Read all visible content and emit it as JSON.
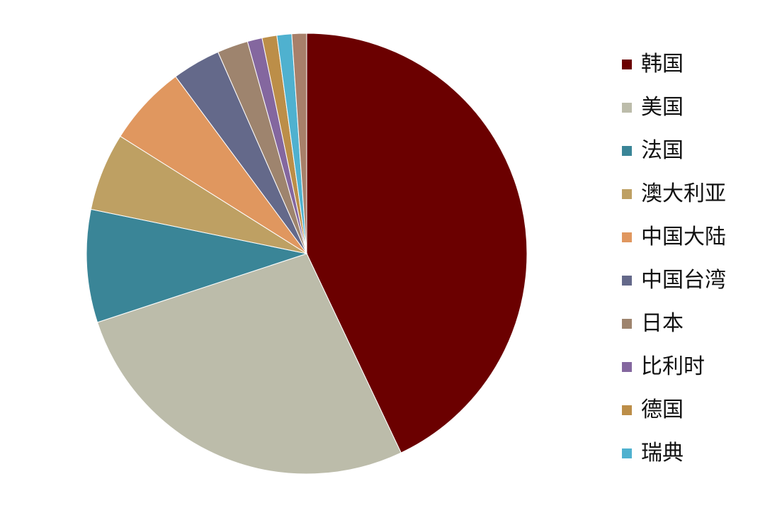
{
  "chart_data": {
    "type": "pie",
    "title": "",
    "legend_position": "right",
    "start_angle_deg": 0,
    "direction": "clockwise",
    "slices": [
      {
        "label": "韩国",
        "value": 43.6,
        "color": "#6b0000"
      },
      {
        "label": "美国",
        "value": 27.4,
        "color": "#bcbcaa"
      },
      {
        "label": "法国",
        "value": 8.4,
        "color": "#3a8597"
      },
      {
        "label": "澳大利亚",
        "value": 5.8,
        "color": "#bea063"
      },
      {
        "label": "中国大陆",
        "value": 6.0,
        "color": "#e0975f"
      },
      {
        "label": "中国台湾",
        "value": 3.6,
        "color": "#64698a"
      },
      {
        "label": "日本",
        "value": 2.3,
        "color": "#9e846e"
      },
      {
        "label": "比利时",
        "value": 1.1,
        "color": "#84679f"
      },
      {
        "label": "德国",
        "value": 1.1,
        "color": "#bc8e48"
      },
      {
        "label": "瑞典",
        "value": 1.1,
        "color": "#4fb1cf"
      },
      {
        "label": "",
        "value": 1.1,
        "color": "#a8806a"
      }
    ]
  }
}
